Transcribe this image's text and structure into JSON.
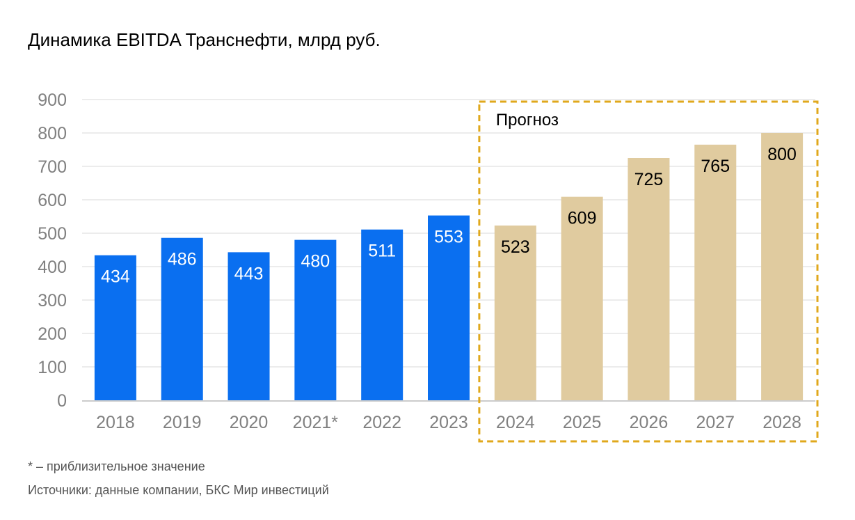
{
  "title": "Динамика EBITDA Транснефти, млрд руб.",
  "footnote": "* – приблизительное значение",
  "source": "Источники: данные компании, БКС Мир инвестиций",
  "colors": {
    "actual": "#0a6ff0",
    "forecast": "#e0cb9f",
    "forecast_box": "#e0a81c",
    "axis_text": "#808080",
    "grid": "#d9d9d9"
  },
  "chart_data": {
    "type": "bar",
    "title": "Динамика EBITDA Транснефти, млрд руб.",
    "categories": [
      "2018",
      "2019",
      "2020",
      "2021*",
      "2022",
      "2023",
      "2024",
      "2025",
      "2026",
      "2027",
      "2028"
    ],
    "values": [
      434,
      486,
      443,
      480,
      511,
      553,
      523,
      609,
      725,
      765,
      800
    ],
    "forecast_flags": [
      false,
      false,
      false,
      false,
      false,
      false,
      true,
      true,
      true,
      true,
      true
    ],
    "yticks": [
      "0",
      "100",
      "200",
      "300",
      "400",
      "500",
      "600",
      "700",
      "800",
      "900"
    ],
    "ylim": [
      0,
      900
    ],
    "grid": true,
    "forecast_label": "Прогноз"
  }
}
